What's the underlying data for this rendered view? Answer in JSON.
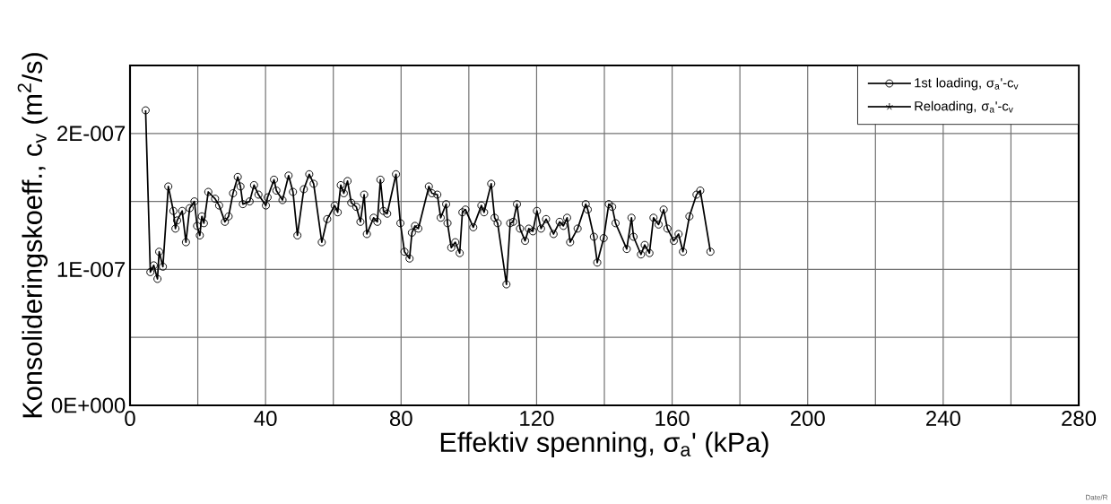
{
  "chart_data": {
    "type": "line",
    "xlabel": "Effektiv spenning, σ$_{a}$'  (kPa)",
    "ylabel": "Konsolideringskoeff., c$_{v}$  (m$^{2}$/s)",
    "xlim": [
      0,
      280
    ],
    "ylim": [
      0,
      2.5e-07
    ],
    "xticks": [
      0,
      {
        "value": 20,
        "label": null
      },
      40,
      {
        "value": 60,
        "label": null
      },
      80,
      {
        "value": 100,
        "label": null
      },
      120,
      {
        "value": 140,
        "label": null
      },
      160,
      {
        "value": 180,
        "label": null
      },
      200,
      {
        "value": 220,
        "label": null
      },
      240,
      {
        "value": 260,
        "label": null
      },
      280
    ],
    "yticks": [
      {
        "value": 0,
        "label": "0E+000"
      },
      {
        "value": 5e-08,
        "label": null
      },
      {
        "value": 1e-07,
        "label": "1E-007"
      },
      {
        "value": 1.5e-07,
        "label": null
      },
      {
        "value": 2e-07,
        "label": "2E-007"
      }
    ],
    "grid": true,
    "legend": "top right",
    "line_style": "solid",
    "annotations": [
      "Date/R"
    ],
    "series": [
      {
        "name": "1st loading, σ$_{a}$'-c$_{v}$",
        "color": "#000000",
        "marker": "circle",
        "x": [
          4.6,
          6.0,
          7.0,
          8.1,
          8.6,
          9.7,
          11.3,
          12.8,
          13.4,
          13.9,
          15.4,
          16.5,
          17.6,
          19.0,
          19.8,
          20.6,
          21.2,
          21.8,
          23.1,
          25.1,
          26.3,
          28.0,
          29.1,
          30.4,
          31.8,
          32.6,
          33.3,
          35.3,
          36.6,
          37.9,
          40.1,
          40.6,
          42.5,
          43.2,
          45.0,
          46.8,
          48.1,
          49.4,
          51.3,
          52.9,
          54.2,
          56.6,
          58.2,
          60.4,
          61.3,
          62.2,
          63.1,
          64.2,
          65.3,
          66.8,
          68.0,
          69.1,
          69.9,
          71.9,
          73.0,
          73.9,
          74.8,
          75.9,
          78.5,
          79.8,
          81.0,
          82.5,
          83.2,
          84.1,
          85.1,
          88.2,
          89.1,
          90.7,
          91.7,
          93.3,
          93.7,
          94.8,
          96.0,
          97.3,
          98.1,
          99.0,
          101.3,
          103.7,
          104.5,
          106.6,
          107.6,
          108.5,
          111.1,
          112.2,
          113.1,
          114.2,
          115.1,
          116.6,
          117.7,
          118.9,
          120.1,
          121.3,
          122.8,
          125.0,
          126.8,
          127.9,
          129.0,
          129.9,
          132.1,
          134.5,
          135.1,
          136.9,
          137.9,
          139.8,
          141.3,
          142.3,
          143.3,
          146.6,
          148.0,
          148.6,
          150.8,
          151.9,
          153.3,
          154.5,
          156.0,
          157.5,
          158.6,
          160.5,
          161.9,
          163.2,
          165.1,
          167.2,
          168.3,
          171.3
        ],
        "values": [
          2.17e-07,
          9.8e-08,
          1.03e-07,
          9.3e-08,
          1.13e-07,
          1.02e-07,
          1.61e-07,
          1.43e-07,
          1.3e-07,
          1.36e-07,
          1.43e-07,
          1.2e-07,
          1.45e-07,
          1.5e-07,
          1.32e-07,
          1.25e-07,
          1.39e-07,
          1.34e-07,
          1.57e-07,
          1.52e-07,
          1.47e-07,
          1.35e-07,
          1.39e-07,
          1.56e-07,
          1.68e-07,
          1.61e-07,
          1.48e-07,
          1.5e-07,
          1.62e-07,
          1.55e-07,
          1.47e-07,
          1.53e-07,
          1.66e-07,
          1.58e-07,
          1.51e-07,
          1.69e-07,
          1.57e-07,
          1.25e-07,
          1.59e-07,
          1.7e-07,
          1.63e-07,
          1.2e-07,
          1.37e-07,
          1.47e-07,
          1.42e-07,
          1.62e-07,
          1.56e-07,
          1.65e-07,
          1.49e-07,
          1.46e-07,
          1.35e-07,
          1.55e-07,
          1.26e-07,
          1.38e-07,
          1.35e-07,
          1.66e-07,
          1.43e-07,
          1.41e-07,
          1.7e-07,
          1.34e-07,
          1.13e-07,
          1.08e-07,
          1.27e-07,
          1.32e-07,
          1.3e-07,
          1.61e-07,
          1.56e-07,
          1.55e-07,
          1.38e-07,
          1.48e-07,
          1.34e-07,
          1.16e-07,
          1.2e-07,
          1.12e-07,
          1.42e-07,
          1.44e-07,
          1.31e-07,
          1.47e-07,
          1.42e-07,
          1.63e-07,
          1.38e-07,
          1.34e-07,
          8.9e-08,
          1.34e-07,
          1.35e-07,
          1.48e-07,
          1.3e-07,
          1.21e-07,
          1.3e-07,
          1.28e-07,
          1.43e-07,
          1.3e-07,
          1.37e-07,
          1.26e-07,
          1.35e-07,
          1.32e-07,
          1.38e-07,
          1.2e-07,
          1.3e-07,
          1.48e-07,
          1.44e-07,
          1.24e-07,
          1.05e-07,
          1.23e-07,
          1.48e-07,
          1.46e-07,
          1.34e-07,
          1.15e-07,
          1.38e-07,
          1.24e-07,
          1.11e-07,
          1.18e-07,
          1.12e-07,
          1.38e-07,
          1.33e-07,
          1.44e-07,
          1.3e-07,
          1.21e-07,
          1.26e-07,
          1.13e-07,
          1.39e-07,
          1.55e-07,
          1.58e-07,
          1.13e-07
        ]
      },
      {
        "name": "Reloading, σ$_{a}$'-c$_{v}$",
        "color": "#000000",
        "marker": "star"
      }
    ]
  }
}
